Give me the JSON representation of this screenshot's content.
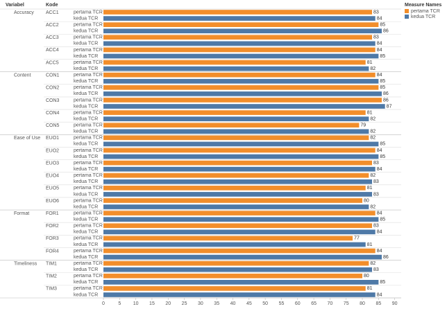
{
  "chart_data": {
    "type": "bar",
    "orientation": "horizontal",
    "row_headers": [
      "Variabel",
      "Kode"
    ],
    "legend_title": "Measure Names",
    "groups": [
      {
        "name": "Accuracy",
        "codes": [
          "ACC1",
          "ACC2",
          "ACC3",
          "ACC4",
          "ACC5"
        ]
      },
      {
        "name": "Content",
        "codes": [
          "CON1",
          "CON2",
          "CON3",
          "CON4",
          "CON5"
        ]
      },
      {
        "name": "Ease of Use",
        "codes": [
          "EUO1",
          "EUO2",
          "EUO3",
          "EUO4",
          "EUO5",
          "EUO6"
        ]
      },
      {
        "name": "Format",
        "codes": [
          "FOR1",
          "FOR2",
          "FOR3",
          "FOR4"
        ]
      },
      {
        "name": "Timeliness",
        "codes": [
          "TIM1",
          "TIM2",
          "TIM3"
        ]
      }
    ],
    "series": [
      {
        "name": "pertama TCR",
        "color": "#f28e2b",
        "values": [
          83,
          85,
          83,
          84,
          81,
          84,
          85,
          86,
          81,
          79,
          82,
          84,
          83,
          82,
          81,
          80,
          84,
          83,
          77,
          84,
          82,
          80,
          81
        ]
      },
      {
        "name": "kedua TCR",
        "color": "#4e79a7",
        "values": [
          84,
          86,
          84,
          85,
          82,
          85,
          86,
          87,
          82,
          82,
          85,
          85,
          84,
          83,
          83,
          82,
          85,
          84,
          81,
          86,
          83,
          85,
          84
        ]
      }
    ],
    "xlim": [
      0,
      92
    ],
    "xticks": [
      0,
      5,
      10,
      15,
      20,
      25,
      30,
      35,
      40,
      45,
      50,
      55,
      60,
      65,
      70,
      75,
      80,
      85,
      90
    ]
  }
}
